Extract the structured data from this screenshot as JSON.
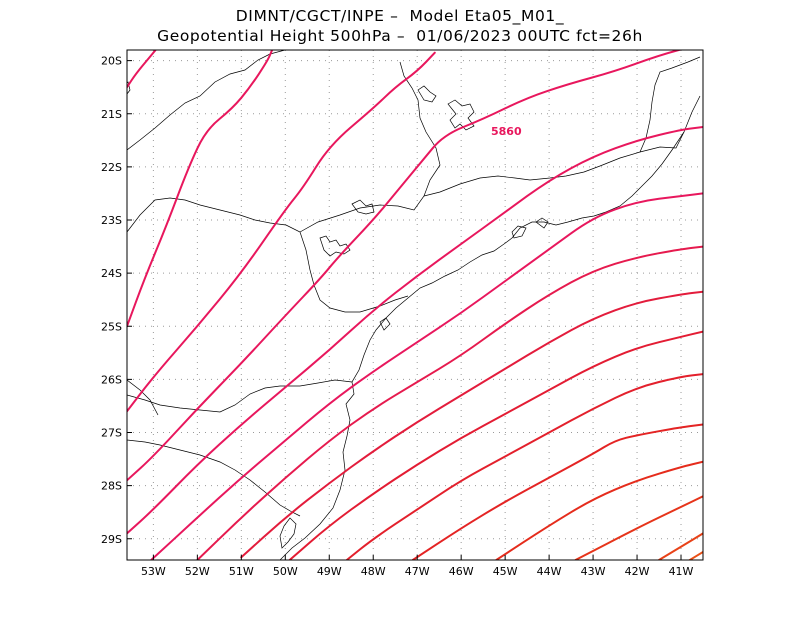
{
  "titles": {
    "line1": "DIMNT/CGCT/INPE –  Model Eta05_M01_",
    "line2": "Geopotential Height 500hPa –  01/06/2023 00UTC fct=26h"
  },
  "axes": {
    "lon_ticks": [
      "53W",
      "52W",
      "51W",
      "50W",
      "49W",
      "48W",
      "47W",
      "46W",
      "45W",
      "44W",
      "43W",
      "42W",
      "41W"
    ],
    "lat_ticks": [
      "20S",
      "21S",
      "22S",
      "23S",
      "24S",
      "25S",
      "26S",
      "27S",
      "28S",
      "29S"
    ],
    "lon_range": [
      -53.6,
      -40.5
    ],
    "lat_range": [
      -29.4,
      -19.8
    ],
    "grid": "dotted"
  },
  "contour_label": "5860",
  "colors": {
    "frame": "#000000",
    "grid": "#9a9a9a",
    "coast": "#000000",
    "label": "#e8175d"
  },
  "chart_data": {
    "type": "contour",
    "variable": "Geopotential Height 500hPa",
    "labeled_contour": 5860,
    "contours": [
      {
        "color": "#e8175d",
        "points": [
          [
            -53.6,
            -20.5
          ],
          [
            -53.4,
            -20.25
          ],
          [
            -53.1,
            -19.95
          ],
          [
            -52.95,
            -19.8
          ]
        ]
      },
      {
        "color": "#e8175d",
        "points": [
          [
            -53.6,
            -25.0
          ],
          [
            -53.2,
            -24.1
          ],
          [
            -52.7,
            -23.1
          ],
          [
            -52.2,
            -22.0
          ],
          [
            -51.8,
            -21.3
          ],
          [
            -51.2,
            -20.9
          ],
          [
            -50.8,
            -20.5
          ],
          [
            -50.4,
            -20.0
          ],
          [
            -50.3,
            -19.8
          ]
        ]
      },
      {
        "color": "#e8175d",
        "points": [
          [
            -53.6,
            -26.6
          ],
          [
            -53.0,
            -25.95
          ],
          [
            -52.0,
            -25.0
          ],
          [
            -51.0,
            -24.0
          ],
          [
            -50.0,
            -22.8
          ],
          [
            -49.6,
            -22.4
          ],
          [
            -49.0,
            -21.6
          ],
          [
            -48.0,
            -20.9
          ],
          [
            -47.5,
            -20.5
          ],
          [
            -47.0,
            -20.2
          ],
          [
            -46.6,
            -19.85
          ]
        ]
      },
      {
        "color": "#e8175d",
        "points": [
          [
            -53.6,
            -27.9
          ],
          [
            -53.0,
            -27.45
          ],
          [
            -52.0,
            -26.55
          ],
          [
            -51.0,
            -25.7
          ],
          [
            -50.0,
            -24.8
          ],
          [
            -49.2,
            -24.1
          ],
          [
            -48.8,
            -23.7
          ],
          [
            -48.0,
            -23.0
          ],
          [
            -47.5,
            -22.5
          ],
          [
            -46.9,
            -21.9
          ],
          [
            -46.4,
            -21.4
          ],
          [
            -45.5,
            -21.1
          ],
          [
            -44.5,
            -20.7
          ],
          [
            -43.6,
            -20.45
          ],
          [
            -42.5,
            -20.2
          ],
          [
            -41.5,
            -19.9
          ],
          [
            -40.6,
            -19.7
          ]
        ]
      },
      {
        "color": "#e8175d",
        "points": [
          [
            -53.6,
            -28.9
          ],
          [
            -53.0,
            -28.45
          ],
          [
            -52.0,
            -27.6
          ],
          [
            -51.0,
            -26.85
          ],
          [
            -50.0,
            -26.15
          ],
          [
            -49.0,
            -25.45
          ],
          [
            -48.0,
            -24.7
          ],
          [
            -47.0,
            -24.05
          ],
          [
            -46.0,
            -23.45
          ],
          [
            -45.0,
            -22.85
          ],
          [
            -44.0,
            -22.25
          ],
          [
            -43.0,
            -21.8
          ],
          [
            -42.0,
            -21.5
          ],
          [
            -41.0,
            -21.3
          ],
          [
            -40.5,
            -21.25
          ]
        ]
      },
      {
        "color": "#e8175d",
        "points": [
          [
            -53.05,
            -29.4
          ],
          [
            -52.0,
            -28.6
          ],
          [
            -51.0,
            -27.85
          ],
          [
            -50.0,
            -27.15
          ],
          [
            -49.0,
            -26.45
          ],
          [
            -48.0,
            -25.85
          ],
          [
            -47.0,
            -25.3
          ],
          [
            -46.0,
            -24.75
          ],
          [
            -45.0,
            -24.15
          ],
          [
            -44.0,
            -23.55
          ],
          [
            -43.0,
            -22.95
          ],
          [
            -42.0,
            -22.65
          ],
          [
            -41.0,
            -22.55
          ],
          [
            -40.5,
            -22.5
          ]
        ]
      },
      {
        "color": "#e61a4e",
        "points": [
          [
            -52.0,
            -29.4
          ],
          [
            -51.0,
            -28.6
          ],
          [
            -50.0,
            -27.85
          ],
          [
            -49.0,
            -27.15
          ],
          [
            -48.0,
            -26.55
          ],
          [
            -47.0,
            -26.05
          ],
          [
            -46.0,
            -25.55
          ],
          [
            -45.0,
            -24.95
          ],
          [
            -44.0,
            -24.4
          ],
          [
            -43.0,
            -23.95
          ],
          [
            -42.0,
            -23.7
          ],
          [
            -41.0,
            -23.55
          ],
          [
            -40.5,
            -23.5
          ]
        ]
      },
      {
        "color": "#e31c3c",
        "points": [
          [
            -51.0,
            -29.35
          ],
          [
            -50.0,
            -28.6
          ],
          [
            -49.0,
            -27.95
          ],
          [
            -48.0,
            -27.35
          ],
          [
            -47.0,
            -26.8
          ],
          [
            -46.0,
            -26.3
          ],
          [
            -45.0,
            -25.8
          ],
          [
            -44.0,
            -25.3
          ],
          [
            -43.0,
            -24.85
          ],
          [
            -42.0,
            -24.55
          ],
          [
            -41.0,
            -24.4
          ],
          [
            -40.5,
            -24.35
          ]
        ]
      },
      {
        "color": "#e31c33",
        "points": [
          [
            -49.9,
            -29.4
          ],
          [
            -49.0,
            -28.75
          ],
          [
            -48.0,
            -28.15
          ],
          [
            -47.0,
            -27.6
          ],
          [
            -46.0,
            -27.1
          ],
          [
            -45.0,
            -26.65
          ],
          [
            -44.0,
            -26.2
          ],
          [
            -43.0,
            -25.75
          ],
          [
            -42.0,
            -25.4
          ],
          [
            -41.0,
            -25.2
          ],
          [
            -40.5,
            -25.1
          ]
        ]
      },
      {
        "color": "#e3202c",
        "points": [
          [
            -48.6,
            -29.4
          ],
          [
            -48.0,
            -29.0
          ],
          [
            -47.0,
            -28.45
          ],
          [
            -46.0,
            -27.9
          ],
          [
            -45.0,
            -27.45
          ],
          [
            -44.0,
            -27.0
          ],
          [
            -43.0,
            -26.55
          ],
          [
            -42.0,
            -26.15
          ],
          [
            -41.0,
            -25.95
          ],
          [
            -40.5,
            -25.9
          ]
        ]
      },
      {
        "color": "#e42424",
        "points": [
          [
            -47.1,
            -29.4
          ],
          [
            -46.0,
            -28.8
          ],
          [
            -45.0,
            -28.3
          ],
          [
            -44.0,
            -27.85
          ],
          [
            -43.0,
            -27.4
          ],
          [
            -42.5,
            -27.15
          ],
          [
            -42.0,
            -27.05
          ],
          [
            -41.0,
            -26.9
          ],
          [
            -40.5,
            -26.85
          ]
        ]
      },
      {
        "color": "#e52c1c",
        "points": [
          [
            -45.2,
            -29.4
          ],
          [
            -44.0,
            -28.75
          ],
          [
            -43.0,
            -28.25
          ],
          [
            -42.0,
            -27.9
          ],
          [
            -41.0,
            -27.65
          ],
          [
            -40.5,
            -27.55
          ]
        ]
      },
      {
        "color": "#e6341a",
        "points": [
          [
            -43.4,
            -29.4
          ],
          [
            -42.0,
            -28.8
          ],
          [
            -41.0,
            -28.4
          ],
          [
            -40.5,
            -28.2
          ]
        ]
      },
      {
        "color": "#e84218",
        "points": [
          [
            -41.5,
            -29.4
          ],
          [
            -41.0,
            -29.15
          ],
          [
            -40.5,
            -28.9
          ]
        ]
      },
      {
        "color": "#ea5016",
        "points": [
          [
            -40.9,
            -29.45
          ],
          [
            -40.5,
            -29.25
          ]
        ]
      }
    ]
  }
}
